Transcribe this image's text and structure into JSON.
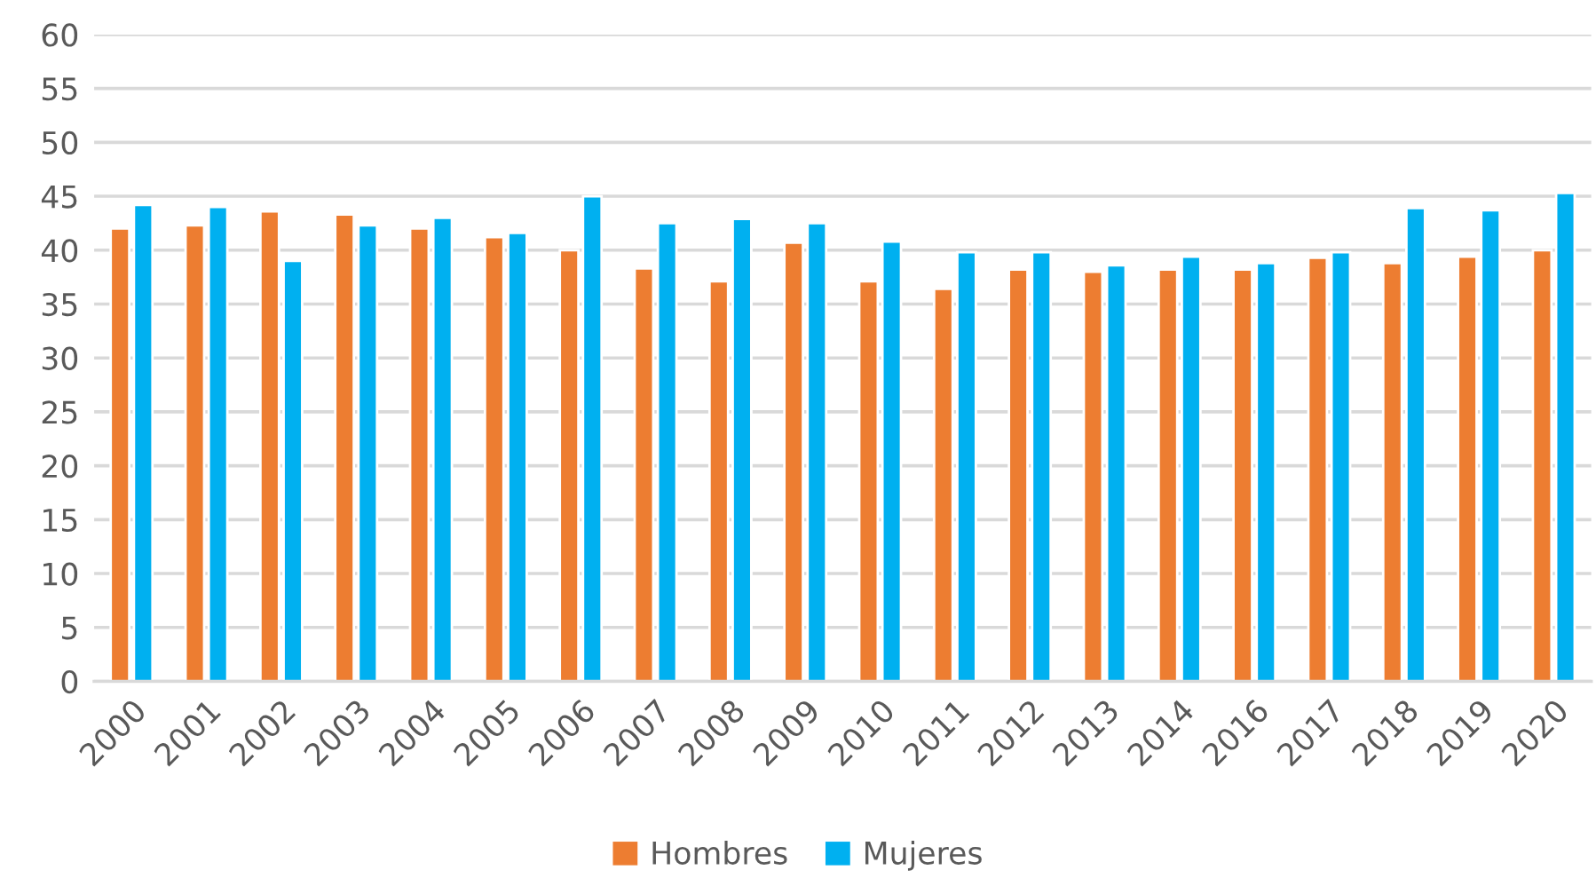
{
  "chart_data": {
    "type": "bar",
    "categories": [
      "2000",
      "2001",
      "2002",
      "2003",
      "2004",
      "2005",
      "2006",
      "2007",
      "2008",
      "2009",
      "2010",
      "2011",
      "2012",
      "2013",
      "2014",
      "2016",
      "2017",
      "2018",
      "2019",
      "2020"
    ],
    "series": [
      {
        "name": "Hombres",
        "color": "#ed7d31",
        "values": [
          42.0,
          42.3,
          43.6,
          43.3,
          42.0,
          41.2,
          40.0,
          38.3,
          37.1,
          40.7,
          37.1,
          36.4,
          38.2,
          38.0,
          38.2,
          38.2,
          39.3,
          38.8,
          39.4,
          40.0
        ]
      },
      {
        "name": "Mujeres",
        "color": "#00b0f0",
        "values": [
          44.2,
          44.0,
          39.0,
          42.3,
          43.0,
          41.6,
          45.0,
          42.5,
          42.9,
          42.5,
          40.8,
          39.8,
          39.8,
          38.6,
          39.4,
          38.8,
          39.8,
          43.9,
          43.7,
          45.3
        ]
      }
    ],
    "ylim": [
      0,
      60
    ],
    "yticks": [
      0,
      5,
      10,
      15,
      20,
      25,
      30,
      35,
      40,
      45,
      50,
      55,
      60
    ],
    "grid": "y",
    "legend": "bottom"
  }
}
